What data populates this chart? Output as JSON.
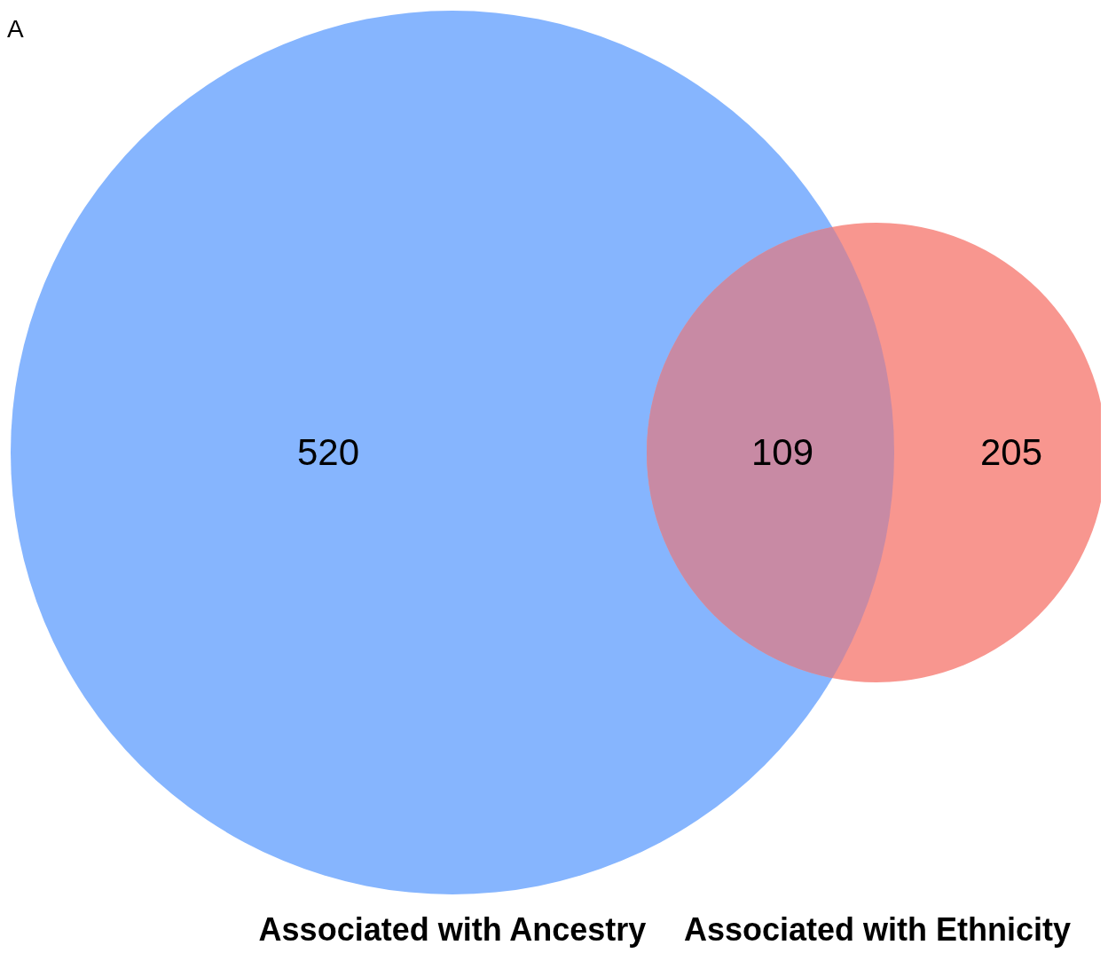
{
  "chart_data": {
    "type": "other",
    "categories": [
      null,
      null,
      null
    ],
    "values": [
      520,
      109,
      205
    ],
    "colors": [
      "#86b5fe",
      "#c88aa4",
      "#f8968f"
    ],
    "data_labels": true,
    "annotations": [
      "A",
      "Associated with Ancestry",
      "Associated with Ethnicity"
    ]
  }
}
